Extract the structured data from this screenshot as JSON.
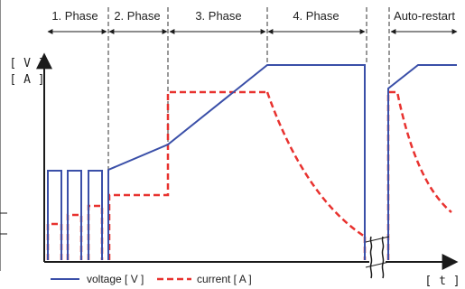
{
  "phases": [
    {
      "id": "phase-1",
      "label": "1. Phase"
    },
    {
      "id": "phase-2",
      "label": "2. Phase"
    },
    {
      "id": "phase-3",
      "label": "3. Phase"
    },
    {
      "id": "phase-4",
      "label": "4. Phase"
    },
    {
      "id": "auto-restart",
      "label": "Auto-restart"
    }
  ],
  "axes": {
    "y_label_voltage": "[ V ]",
    "y_label_current": "[ A ]",
    "x_label": "[ t ]"
  },
  "legend": {
    "voltage": "voltage [ V ]",
    "current": "current [ A ]"
  },
  "colors": {
    "voltage": "#3a4fa8",
    "current": "#e8322f",
    "axis": "#1a1a1a",
    "divider": "#333333"
  }
}
